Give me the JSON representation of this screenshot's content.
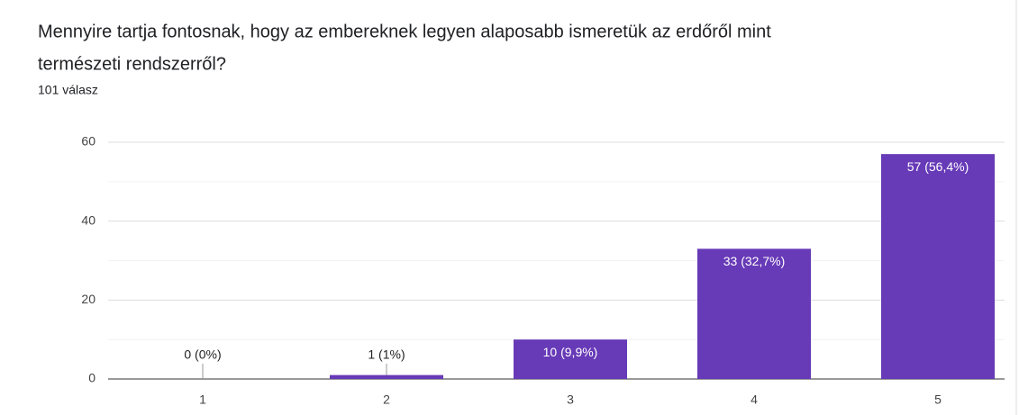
{
  "chart_data": {
    "type": "bar",
    "title_lines": [
      "Mennyire tartja fontosnak, hogy az embereknek legyen alaposabb ismeretük az erdőről mint",
      "természeti rendszerről?"
    ],
    "subtitle": "101 válasz",
    "categories": [
      "1",
      "2",
      "3",
      "4",
      "5"
    ],
    "values": [
      0,
      1,
      10,
      33,
      57
    ],
    "value_labels": [
      "0 (0%)",
      "1 (1%)",
      "10 (9,9%)",
      "33 (32,7%)",
      "57 (56,4%)"
    ],
    "color": "#673ab7",
    "ylim": [
      0,
      60
    ],
    "yticks": [
      0,
      20,
      40,
      60
    ],
    "minor_yticks": [
      10,
      30,
      50
    ],
    "grid": true
  }
}
